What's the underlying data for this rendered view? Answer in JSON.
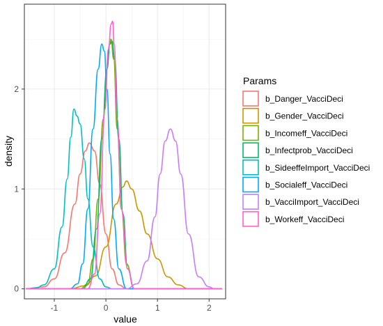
{
  "chart_data": {
    "type": "line",
    "xlabel": "value",
    "ylabel": "density",
    "xlim": [
      -1.58,
      2.32
    ],
    "ylim": [
      -0.1,
      2.85
    ],
    "xticks": [
      -1,
      0,
      1,
      2
    ],
    "yticks": [
      0,
      1,
      2
    ],
    "xtick_labels": [
      "-1",
      "0",
      "1",
      "2"
    ],
    "ytick_labels": [
      "0",
      "1",
      "2"
    ],
    "grid": true,
    "legend_title": "Params",
    "legend_position": "right",
    "series": [
      {
        "name": "b_Danger_VacciDeci",
        "color": "#F8766D",
        "x": [
          -1.55,
          -1.2,
          -1.0,
          -0.8,
          -0.6,
          -0.5,
          -0.4,
          -0.32,
          -0.22,
          -0.12,
          0.0,
          0.12,
          0.25,
          0.4,
          2.25
        ],
        "y": [
          0,
          0.02,
          0.1,
          0.36,
          0.85,
          1.15,
          1.38,
          1.46,
          1.38,
          1.05,
          0.55,
          0.2,
          0.04,
          0,
          0
        ]
      },
      {
        "name": "b_Gender_VacciDeci",
        "color": "#CD9600",
        "x": [
          -1.55,
          -0.7,
          -0.4,
          -0.2,
          0.0,
          0.2,
          0.33,
          0.4,
          0.5,
          0.65,
          0.8,
          1.0,
          1.2,
          1.4,
          1.6,
          2.25
        ],
        "y": [
          0,
          0,
          0.03,
          0.13,
          0.42,
          0.85,
          1.02,
          1.08,
          1.0,
          0.78,
          0.55,
          0.3,
          0.12,
          0.04,
          0,
          0
        ]
      },
      {
        "name": "b_Incomeff_VacciDeci",
        "color": "#7CAE00",
        "x": [
          -1.55,
          -0.5,
          -0.35,
          -0.25,
          -0.15,
          -0.05,
          0.02,
          0.07,
          0.1,
          0.15,
          0.22,
          0.3,
          0.4,
          0.55,
          2.25
        ],
        "y": [
          0,
          0,
          0.05,
          0.3,
          0.9,
          1.7,
          2.2,
          2.45,
          2.5,
          2.3,
          1.6,
          0.8,
          0.25,
          0,
          0
        ]
      },
      {
        "name": "b_Infectprob_VacciDeci",
        "color": "#00BE67",
        "x": [
          -1.55,
          -0.45,
          -0.3,
          -0.18,
          -0.08,
          0.02,
          0.08,
          0.12,
          0.17,
          0.25,
          0.33,
          0.42,
          0.55,
          2.25
        ],
        "y": [
          0,
          0,
          0.1,
          0.6,
          1.5,
          2.2,
          2.45,
          2.48,
          2.3,
          1.5,
          0.75,
          0.2,
          0,
          0
        ]
      },
      {
        "name": "b_SideeffeImport_VacciDeci",
        "color": "#00BFC4",
        "x": [
          -1.55,
          -1.35,
          -1.2,
          -1.0,
          -0.85,
          -0.75,
          -0.68,
          -0.62,
          -0.56,
          -0.5,
          -0.42,
          -0.35,
          -0.25,
          -0.12,
          0.0,
          0.12,
          2.25
        ],
        "y": [
          0,
          0.01,
          0.04,
          0.2,
          0.62,
          1.1,
          1.52,
          1.8,
          1.73,
          1.65,
          1.3,
          0.9,
          0.42,
          0.1,
          0.02,
          0,
          0
        ]
      },
      {
        "name": "b_Socialeff_VacciDeci",
        "color": "#00A9FF",
        "x": [
          -1.55,
          -0.7,
          -0.55,
          -0.45,
          -0.35,
          -0.25,
          -0.15,
          -0.08,
          -0.03,
          0.02,
          0.08,
          0.15,
          0.25,
          0.4,
          2.25
        ],
        "y": [
          0,
          0,
          0.05,
          0.25,
          0.8,
          1.6,
          2.2,
          2.45,
          2.38,
          2.0,
          1.35,
          0.7,
          0.2,
          0,
          0
        ]
      },
      {
        "name": "b_VacciImport_VacciDeci",
        "color": "#C77CFF",
        "x": [
          -1.55,
          0.4,
          0.6,
          0.8,
          0.95,
          1.05,
          1.15,
          1.25,
          1.35,
          1.45,
          1.6,
          1.8,
          2.0,
          2.1,
          2.25
        ],
        "y": [
          0,
          0,
          0.05,
          0.28,
          0.72,
          1.15,
          1.48,
          1.6,
          1.48,
          1.15,
          0.55,
          0.12,
          0.02,
          0,
          0
        ]
      },
      {
        "name": "b_Workeff_VacciDeci",
        "color": "#FF61CC",
        "x": [
          -1.55,
          -0.35,
          -0.22,
          -0.12,
          -0.02,
          0.05,
          0.1,
          0.13,
          0.16,
          0.22,
          0.3,
          0.42,
          0.55,
          2.25
        ],
        "y": [
          0,
          0,
          0.15,
          0.75,
          1.8,
          2.4,
          2.65,
          2.68,
          2.45,
          1.7,
          0.8,
          0.2,
          0,
          0
        ]
      }
    ]
  }
}
